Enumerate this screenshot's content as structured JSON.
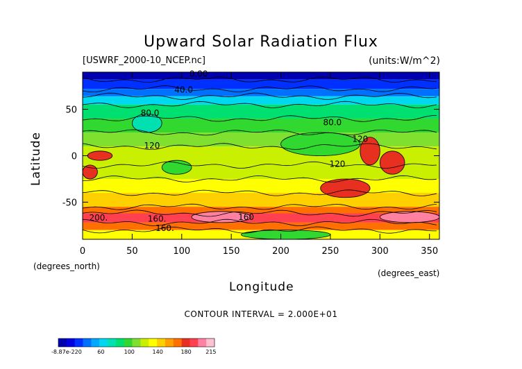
{
  "chart_data": {
    "type": "heatmap",
    "title": "Upward Solar Radiation Flux",
    "file_label": "[USWRF_2000-10_NCEP.nc]",
    "units_label": "(units:W/m^2)",
    "xlabel": "Longitude",
    "ylabel": "Latitude",
    "x_unit": "(degrees_north)",
    "x_unit_right": "(degrees_east)",
    "xlim": [
      0,
      360
    ],
    "ylim": [
      -90,
      90
    ],
    "x_ticks": [
      "0",
      "50",
      "100",
      "150",
      "200",
      "250",
      "300",
      "350"
    ],
    "y_ticks": [
      "50",
      "0",
      "-50"
    ],
    "contour_interval": "CONTOUR INTERVAL = 2.000E+01",
    "contour_labels": [
      {
        "text": "0.00",
        "lon": 117,
        "lat": 88
      },
      {
        "text": "40.0",
        "lon": 102,
        "lat": 71
      },
      {
        "text": "80.0",
        "lon": 68,
        "lat": 46
      },
      {
        "text": "80.0",
        "lon": 252,
        "lat": 36
      },
      {
        "text": "120",
        "lon": 70,
        "lat": 11
      },
      {
        "text": "120",
        "lon": 280,
        "lat": 18
      },
      {
        "text": "120",
        "lon": 257,
        "lat": -9
      },
      {
        "text": "160",
        "lon": 165,
        "lat": -66
      },
      {
        "text": "160.",
        "lon": 75,
        "lat": -68
      },
      {
        "text": "160.",
        "lon": 83,
        "lat": -78
      },
      {
        "text": "200.",
        "lon": 16,
        "lat": -67
      }
    ],
    "colorbar": {
      "tick_labels": [
        "-8.87e-220",
        "60",
        "100",
        "140",
        "180",
        "215"
      ],
      "tick_values": [
        0,
        60,
        100,
        140,
        180,
        215
      ],
      "min": 0,
      "max": 220,
      "levels": [
        "#0000b0",
        "#0000e0",
        "#0030ff",
        "#0070ff",
        "#00a8ff",
        "#00d8f0",
        "#00e0b0",
        "#00e070",
        "#30d830",
        "#80e030",
        "#c8f000",
        "#ffff00",
        "#ffd000",
        "#ffa000",
        "#ff7000",
        "#e83020",
        "#ff4050",
        "#ff80a0",
        "#ffc0d0"
      ]
    },
    "zonal_bands": [
      {
        "lat_from": 90,
        "lat_to": 82,
        "value": 5
      },
      {
        "lat_from": 82,
        "lat_to": 72,
        "value": 25
      },
      {
        "lat_from": 72,
        "lat_to": 64,
        "value": 45
      },
      {
        "lat_from": 64,
        "lat_to": 55,
        "value": 62
      },
      {
        "lat_from": 55,
        "lat_to": 40,
        "value": 82
      },
      {
        "lat_from": 40,
        "lat_to": 25,
        "value": 98
      },
      {
        "lat_from": 25,
        "lat_to": 10,
        "value": 115
      },
      {
        "lat_from": 10,
        "lat_to": -10,
        "value": 125
      },
      {
        "lat_from": -10,
        "lat_to": -25,
        "value": 120
      },
      {
        "lat_from": -25,
        "lat_to": -40,
        "value": 132
      },
      {
        "lat_from": -40,
        "lat_to": -55,
        "value": 150
      },
      {
        "lat_from": -55,
        "lat_to": -62,
        "value": 165
      },
      {
        "lat_from": -62,
        "lat_to": -72,
        "value": 190
      },
      {
        "lat_from": -72,
        "lat_to": -80,
        "value": 165
      },
      {
        "lat_from": -80,
        "lat_to": -90,
        "value": 130
      }
    ],
    "features": [
      {
        "lon_from": 200,
        "lon_to": 280,
        "lat_from": 25,
        "lat_to": 0,
        "value": 96
      },
      {
        "lon_from": 280,
        "lon_to": 300,
        "lat_from": 20,
        "lat_to": -10,
        "value": 175
      },
      {
        "lon_from": 300,
        "lon_to": 325,
        "lat_from": 5,
        "lat_to": -20,
        "value": 180
      },
      {
        "lon_from": 5,
        "lon_to": 30,
        "lat_from": 5,
        "lat_to": -5,
        "value": 178
      },
      {
        "lon_from": 80,
        "lon_to": 110,
        "lat_from": -5,
        "lat_to": -20,
        "value": 100
      },
      {
        "lon_from": 50,
        "lon_to": 80,
        "lat_from": 45,
        "lat_to": 25,
        "value": 70
      },
      {
        "lon_from": 0,
        "lon_to": 15,
        "lat_from": -10,
        "lat_to": -25,
        "value": 178
      },
      {
        "lon_from": 240,
        "lon_to": 290,
        "lat_from": -25,
        "lat_to": -45,
        "value": 182
      },
      {
        "lon_from": 110,
        "lon_to": 170,
        "lat_from": -60,
        "lat_to": -72,
        "value": 200
      },
      {
        "lon_from": 300,
        "lon_to": 360,
        "lat_from": -60,
        "lat_to": -72,
        "value": 205
      },
      {
        "lon_from": 160,
        "lon_to": 250,
        "lat_from": -80,
        "lat_to": -90,
        "value": 95
      }
    ]
  }
}
